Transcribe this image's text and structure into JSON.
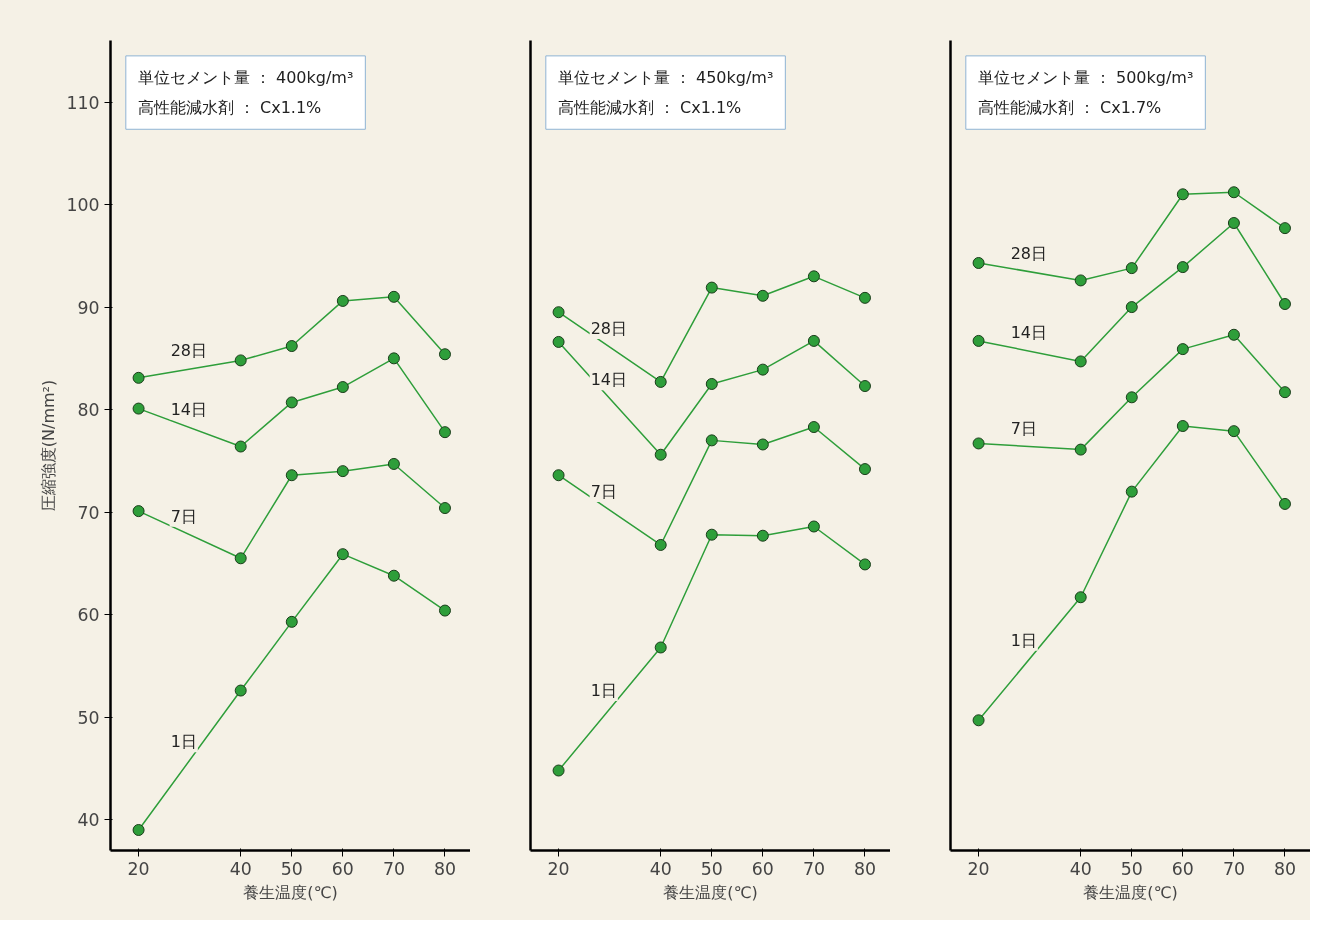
{
  "chart_data": [
    {
      "type": "line",
      "xlabel": "養生温度(℃)",
      "ylabel": "圧縮強度(N/mm²)",
      "annotations": [
        "単位セメント量 ： 400kg/m³",
        "高性能減水剤 ： Cx1.1%"
      ],
      "x": [
        20,
        40,
        50,
        60,
        70,
        80
      ],
      "xlim": [
        14.5,
        85
      ],
      "ylim": [
        37,
        116
      ],
      "xticks": [
        20,
        40,
        50,
        60,
        70,
        80
      ],
      "yticks": [
        40,
        50,
        60,
        70,
        80,
        90,
        100,
        110
      ],
      "marker": "circle",
      "grid": false,
      "series": [
        {
          "name": "28日",
          "color": "#2e9e3a",
          "values": [
            83.1,
            84.8,
            86.2,
            90.6,
            91.0,
            85.4
          ]
        },
        {
          "name": "14日",
          "color": "#2e9e3a",
          "values": [
            80.1,
            76.4,
            80.7,
            82.2,
            85.0,
            77.8
          ]
        },
        {
          "name": "7日",
          "color": "#2e9e3a",
          "values": [
            70.1,
            65.5,
            73.6,
            74.0,
            74.7,
            70.4
          ]
        },
        {
          "name": "1日",
          "color": "#2e9e3a",
          "values": [
            39.0,
            52.6,
            59.3,
            65.9,
            63.8,
            60.4
          ]
        }
      ]
    },
    {
      "type": "line",
      "xlabel": "養生温度(℃)",
      "annotations": [
        "単位セメント量 ： 450kg/m³",
        "高性能減水剤 ： Cx1.1%"
      ],
      "x": [
        20,
        40,
        50,
        60,
        70,
        80
      ],
      "xlim": [
        14.5,
        85
      ],
      "ylim": [
        37,
        116
      ],
      "xticks": [
        20,
        40,
        50,
        60,
        70,
        80
      ],
      "yticks": [
        40,
        50,
        60,
        70,
        80,
        90,
        100,
        110
      ],
      "tick_labels": "x",
      "marker": "circle",
      "grid": false,
      "series": [
        {
          "name": "28日",
          "color": "#2e9e3a",
          "values": [
            89.5,
            82.7,
            91.9,
            91.1,
            93.0,
            90.9
          ]
        },
        {
          "name": "14日",
          "color": "#2e9e3a",
          "values": [
            86.6,
            75.6,
            82.5,
            83.9,
            86.7,
            82.3
          ]
        },
        {
          "name": "7日",
          "color": "#2e9e3a",
          "values": [
            73.6,
            66.8,
            77.0,
            76.6,
            78.3,
            74.2
          ]
        },
        {
          "name": "1日",
          "color": "#2e9e3a",
          "values": [
            44.8,
            56.8,
            67.8,
            67.7,
            68.6,
            64.9
          ]
        }
      ]
    },
    {
      "type": "line",
      "xlabel": "養生温度(℃)",
      "annotations": [
        "単位セメント量 ： 500kg/m³",
        "高性能減水剤 ： Cx1.7%"
      ],
      "x": [
        20,
        40,
        50,
        60,
        70,
        80
      ],
      "xlim": [
        14.5,
        85
      ],
      "ylim": [
        37,
        116
      ],
      "xticks": [
        20,
        40,
        50,
        60,
        70,
        80
      ],
      "yticks": [
        40,
        50,
        60,
        70,
        80,
        90,
        100,
        110
      ],
      "tick_labels": "x",
      "marker": "circle",
      "grid": false,
      "series": [
        {
          "name": "28日",
          "color": "#2e9e3a",
          "values": [
            94.3,
            92.6,
            93.8,
            101.0,
            101.2,
            97.7
          ]
        },
        {
          "name": "14日",
          "color": "#2e9e3a",
          "values": [
            86.7,
            84.7,
            90.0,
            93.9,
            98.2,
            90.3
          ]
        },
        {
          "name": "7日",
          "color": "#2e9e3a",
          "values": [
            76.7,
            76.1,
            81.2,
            85.9,
            87.3,
            81.7
          ]
        },
        {
          "name": "1日",
          "color": "#2e9e3a",
          "values": [
            49.7,
            61.7,
            72.0,
            78.4,
            77.9,
            70.8
          ]
        }
      ]
    }
  ]
}
